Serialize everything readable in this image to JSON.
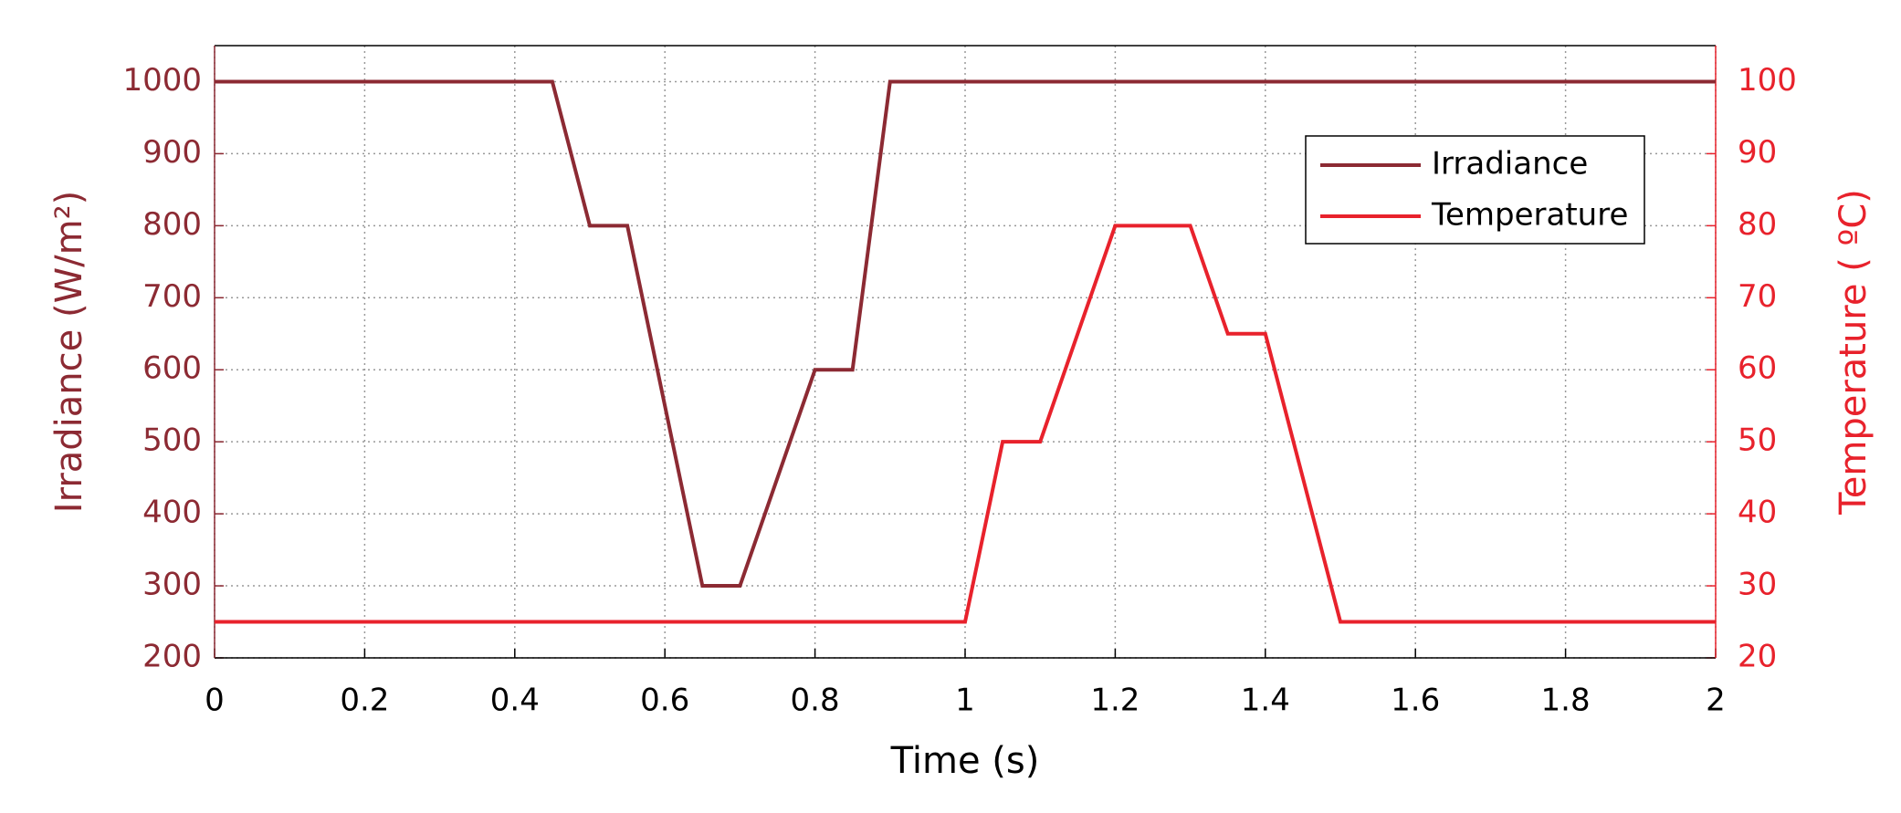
{
  "chart_data": {
    "type": "line",
    "xlabel": "Time (s)",
    "ylabel": "Irradiance (W/m²)",
    "y2label": "Temperature ( ºC)",
    "xlim": [
      0,
      2
    ],
    "xticks": [
      0,
      0.2,
      0.4,
      0.6,
      0.8,
      1,
      1.2,
      1.4,
      1.6,
      1.8,
      2
    ],
    "ylim": [
      200,
      1050
    ],
    "yticks": [
      200,
      300,
      400,
      500,
      600,
      700,
      800,
      900,
      1000
    ],
    "y2lim": [
      20,
      105
    ],
    "y2ticks": [
      20,
      30,
      40,
      50,
      60,
      70,
      80,
      90,
      100
    ],
    "grid": true,
    "legend": "upper right",
    "series": [
      {
        "name": "Irradiance",
        "color": "#8c2a33",
        "x": [
          0,
          0.45,
          0.5,
          0.55,
          0.65,
          0.7,
          0.8,
          0.85,
          0.9,
          2
        ],
        "values": [
          1000,
          1000,
          800,
          800,
          300,
          300,
          600,
          600,
          1000,
          1000
        ]
      },
      {
        "name": "Temperature",
        "color": "#e8222c",
        "axis": "y2",
        "x": [
          0,
          1,
          1.05,
          1.1,
          1.2,
          1.3,
          1.35,
          1.4,
          1.5,
          2
        ],
        "values": [
          25,
          25,
          50,
          50,
          80,
          80,
          65,
          65,
          25,
          25
        ]
      }
    ]
  }
}
